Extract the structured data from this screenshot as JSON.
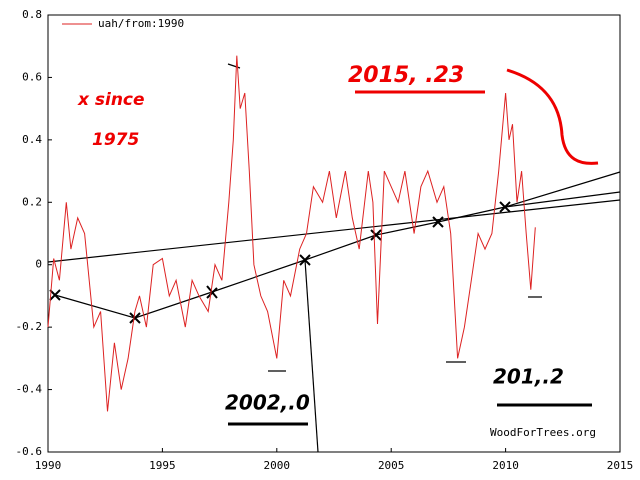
{
  "chart_data": {
    "type": "line",
    "series": [
      {
        "name": "uah/from:1990",
        "color": "#dd2222",
        "x": [
          1990,
          1990.25,
          1990.5,
          1990.8,
          1991,
          1991.3,
          1991.6,
          1992,
          1992.3,
          1992.6,
          1992.9,
          1993.2,
          1993.5,
          1993.8,
          1994,
          1994.3,
          1994.6,
          1995,
          1995.3,
          1995.6,
          1996,
          1996.3,
          1996.6,
          1997,
          1997.3,
          1997.6,
          1997.9,
          1998.1,
          1998.25,
          1998.4,
          1998.6,
          1998.8,
          1999,
          1999.3,
          1999.6,
          2000,
          2000.3,
          2000.6,
          2001,
          2001.3,
          2001.6,
          2002,
          2002.3,
          2002.6,
          2003,
          2003.3,
          2003.6,
          2004,
          2004.2,
          2004.4,
          2004.7,
          2005,
          2005.3,
          2005.6,
          2006,
          2006.3,
          2006.6,
          2007,
          2007.3,
          2007.6,
          2007.9,
          2008.2,
          2008.5,
          2008.8,
          2009.1,
          2009.4,
          2009.7,
          2010,
          2010.15,
          2010.3,
          2010.5,
          2010.7,
          2010.9,
          2011.1,
          2011.3
        ],
        "values": [
          -0.2,
          0.02,
          -0.05,
          0.2,
          0.05,
          0.15,
          0.1,
          -0.2,
          -0.15,
          -0.47,
          -0.25,
          -0.4,
          -0.3,
          -0.15,
          -0.1,
          -0.2,
          0.0,
          0.02,
          -0.1,
          -0.05,
          -0.2,
          -0.05,
          -0.1,
          -0.15,
          0.0,
          -0.05,
          0.2,
          0.4,
          0.67,
          0.5,
          0.55,
          0.3,
          0.0,
          -0.1,
          -0.15,
          -0.3,
          -0.05,
          -0.1,
          0.05,
          0.1,
          0.25,
          0.2,
          0.3,
          0.15,
          0.3,
          0.15,
          0.05,
          0.3,
          0.2,
          -0.19,
          0.3,
          0.25,
          0.2,
          0.3,
          0.1,
          0.25,
          0.3,
          0.2,
          0.25,
          0.1,
          -0.3,
          -0.2,
          -0.05,
          0.1,
          0.05,
          0.1,
          0.3,
          0.55,
          0.4,
          0.45,
          0.2,
          0.3,
          0.1,
          -0.08,
          0.12
        ]
      }
    ],
    "xlim": [
      1990,
      2015
    ],
    "xticks": [
      1990,
      1995,
      2000,
      2005,
      2010,
      2015
    ],
    "ylim": [
      -0.6,
      0.8
    ],
    "yticks": [
      -0.6,
      -0.4,
      -0.2,
      0,
      0.2,
      0.4,
      0.6,
      0.8
    ],
    "grid": false,
    "legend": "upper left",
    "credit": "WoodForTrees.org",
    "annotations": [
      "2015, .23",
      "x since",
      "1975",
      "2002,.0",
      "201,.2"
    ]
  }
}
